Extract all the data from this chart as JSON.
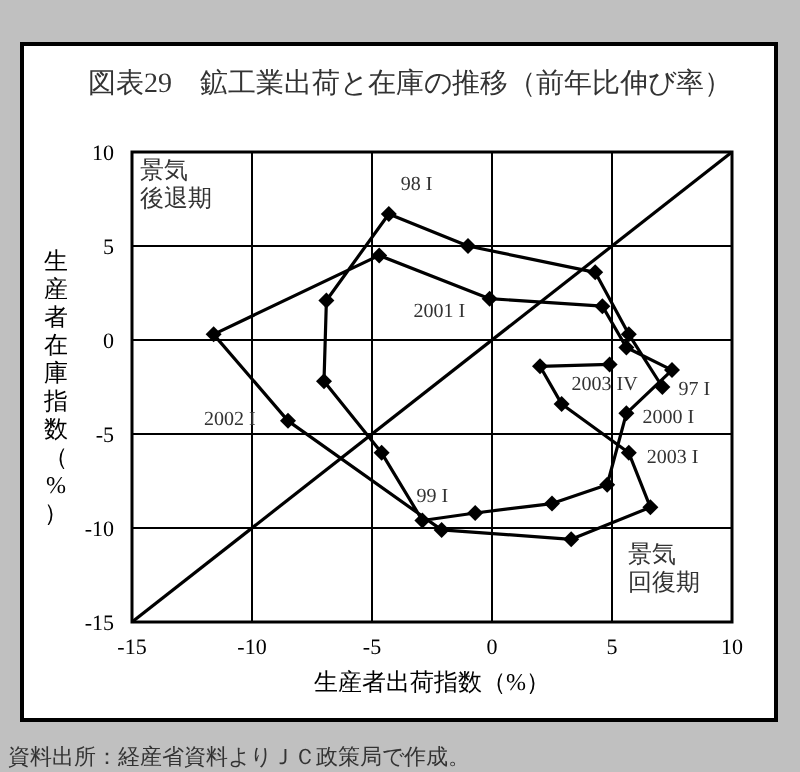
{
  "chart_data": {
    "type": "line",
    "title": "図表29　鉱工業出荷と在庫の推移（前年比伸び率）",
    "xlabel": "生産者出荷指数（%）",
    "ylabel": "生産者在庫指数（%）",
    "xlim": [
      -15,
      10
    ],
    "xticks": [
      -15,
      -10,
      -5,
      0,
      5,
      10
    ],
    "ylim": [
      -15,
      10
    ],
    "yticks": [
      -15,
      -10,
      -5,
      0,
      5,
      10
    ],
    "grid": true,
    "series": [
      {
        "color": "#000000",
        "marker": "diamond",
        "x": [
          7.1,
          5.7,
          4.3,
          -1.0,
          -4.3,
          -6.9,
          -7.0,
          -4.6,
          -2.9,
          -0.7,
          2.5,
          4.8,
          5.6,
          7.5,
          5.6,
          4.6,
          -0.1,
          -4.7,
          -11.6,
          -8.5,
          -2.1,
          3.3,
          6.6,
          5.7,
          2.9,
          2.0,
          4.9
        ],
        "values": [
          -2.5,
          0.3,
          3.6,
          5.0,
          6.7,
          2.1,
          -2.2,
          -6.0,
          -9.6,
          -9.2,
          -8.7,
          -7.7,
          -3.9,
          -1.6,
          -0.4,
          1.8,
          2.2,
          4.5,
          0.3,
          -4.3,
          -10.1,
          -10.6,
          -8.9,
          -6.0,
          -3.4,
          -1.4,
          -1.3
        ]
      },
      {
        "color": "#000000",
        "marker": "none",
        "x": [
          -15,
          10
        ],
        "values": [
          -15,
          10
        ]
      }
    ],
    "annotations": [
      "景気後退期",
      {
        "text": "98 I",
        "x": -4.3,
        "y": 6.7
      },
      {
        "text": "2001 I",
        "x": -0.1,
        "y": 2.2
      },
      {
        "text": "2002 I",
        "x": -8.5,
        "y": -4.3
      },
      {
        "text": "99 I",
        "x": -2.9,
        "y": -9.6
      },
      {
        "text": "2003 IV",
        "x": 4.9,
        "y": -1.3
      },
      {
        "text": "97 I",
        "x": 7.1,
        "y": -2.5
      },
      {
        "text": "2000 I",
        "x": 5.6,
        "y": -3.9
      },
      {
        "text": "2003 I",
        "x": 5.7,
        "y": -6.0
      },
      "景気回復期",
      "資料出所：経産省資料よりＪＣ政策局で作成。"
    ]
  }
}
